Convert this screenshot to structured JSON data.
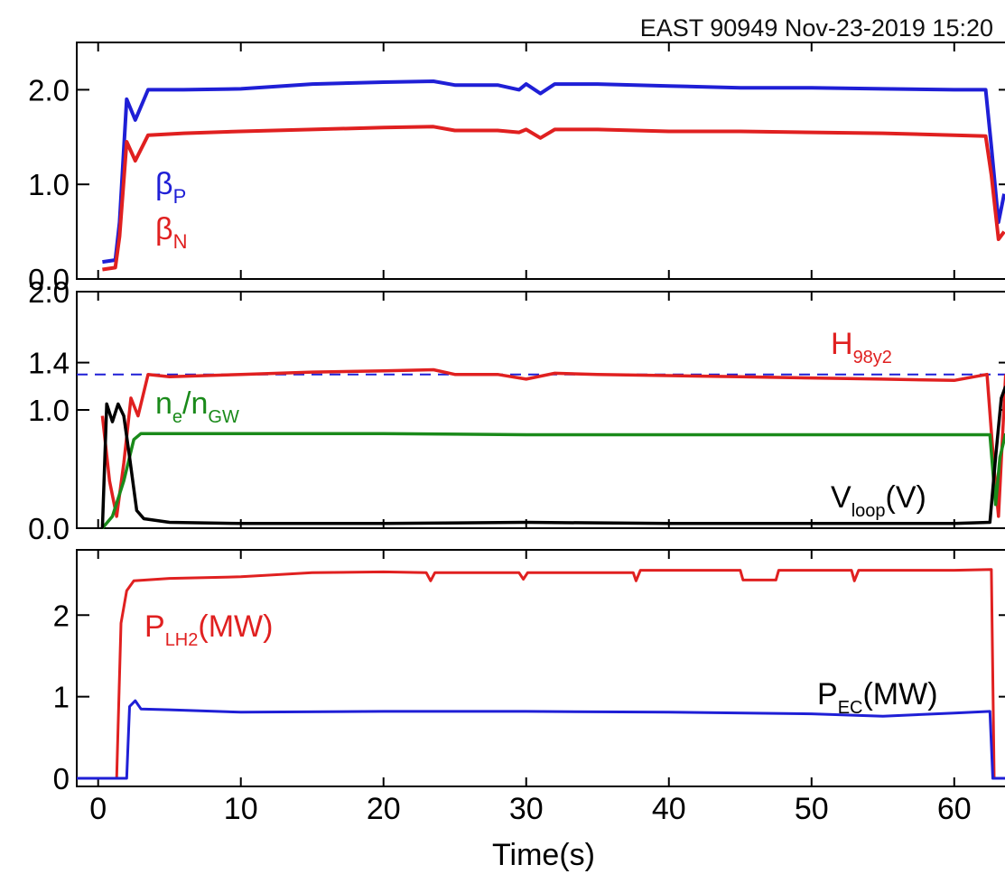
{
  "header": {
    "text": "EAST 90949 Nov-23-2019 15:20"
  },
  "chart_data": [
    {
      "type": "line",
      "panel": "top",
      "ylim": [
        0,
        2.5
      ],
      "yticks": [
        "0.0",
        "1.0",
        "2.0"
      ],
      "series": [
        {
          "name": "βP",
          "color": "#1f1fd6",
          "points": [
            [
              0.3,
              0.18
            ],
            [
              1.2,
              0.2
            ],
            [
              1.5,
              0.6
            ],
            [
              2.0,
              1.9
            ],
            [
              2.6,
              1.68
            ],
            [
              3.5,
              2.0
            ],
            [
              6,
              2.0
            ],
            [
              10,
              2.01
            ],
            [
              15,
              2.06
            ],
            [
              20,
              2.08
            ],
            [
              23.5,
              2.09
            ],
            [
              25,
              2.05
            ],
            [
              28,
              2.05
            ],
            [
              29.5,
              2.0
            ],
            [
              30,
              2.06
            ],
            [
              31,
              1.96
            ],
            [
              32,
              2.06
            ],
            [
              35,
              2.06
            ],
            [
              40,
              2.04
            ],
            [
              45,
              2.02
            ],
            [
              50,
              2.02
            ],
            [
              55,
              2.01
            ],
            [
              60,
              2.0
            ],
            [
              62.2,
              2.0
            ],
            [
              62.6,
              1.4
            ],
            [
              63.1,
              0.6
            ],
            [
              63.5,
              0.9
            ]
          ]
        },
        {
          "name": "βN",
          "color": "#e02020",
          "points": [
            [
              0.3,
              0.1
            ],
            [
              1.2,
              0.12
            ],
            [
              1.5,
              0.45
            ],
            [
              2.0,
              1.45
            ],
            [
              2.6,
              1.25
            ],
            [
              3.5,
              1.52
            ],
            [
              6,
              1.54
            ],
            [
              10,
              1.56
            ],
            [
              15,
              1.58
            ],
            [
              20,
              1.6
            ],
            [
              23.5,
              1.61
            ],
            [
              25,
              1.57
            ],
            [
              28,
              1.57
            ],
            [
              29.5,
              1.55
            ],
            [
              30,
              1.58
            ],
            [
              31,
              1.49
            ],
            [
              32,
              1.58
            ],
            [
              35,
              1.58
            ],
            [
              40,
              1.56
            ],
            [
              45,
              1.56
            ],
            [
              50,
              1.55
            ],
            [
              55,
              1.54
            ],
            [
              60,
              1.52
            ],
            [
              62.2,
              1.51
            ],
            [
              62.6,
              1.1
            ],
            [
              63.1,
              0.42
            ],
            [
              63.5,
              0.5
            ]
          ]
        }
      ]
    },
    {
      "type": "line",
      "panel": "middle",
      "ylim": [
        0,
        2.0
      ],
      "yticks": [
        "0.0",
        "1.0",
        "1.4",
        "2.0"
      ],
      "reference_line": {
        "y": 1.3,
        "style": "dashed",
        "color": "#1f1fd6"
      },
      "series": [
        {
          "name": "H98y2",
          "color": "#e02020",
          "points": [
            [
              0.3,
              0.95
            ],
            [
              0.8,
              0.4
            ],
            [
              1.3,
              0.1
            ],
            [
              1.8,
              0.55
            ],
            [
              2.3,
              1.1
            ],
            [
              2.8,
              0.95
            ],
            [
              3.5,
              1.3
            ],
            [
              5,
              1.28
            ],
            [
              10,
              1.3
            ],
            [
              15,
              1.32
            ],
            [
              20,
              1.33
            ],
            [
              23.5,
              1.34
            ],
            [
              25,
              1.3
            ],
            [
              28,
              1.3
            ],
            [
              30,
              1.26
            ],
            [
              32,
              1.31
            ],
            [
              35,
              1.3
            ],
            [
              40,
              1.29
            ],
            [
              45,
              1.28
            ],
            [
              50,
              1.27
            ],
            [
              55,
              1.26
            ],
            [
              60,
              1.25
            ],
            [
              62.3,
              1.3
            ],
            [
              62.8,
              0.5
            ],
            [
              63.1,
              0.1
            ],
            [
              63.6,
              1.3
            ]
          ]
        },
        {
          "name": "ne/nGW",
          "color": "#1a8a1a",
          "points": [
            [
              0.3,
              0.0
            ],
            [
              1.0,
              0.1
            ],
            [
              1.8,
              0.4
            ],
            [
              2.5,
              0.75
            ],
            [
              3.0,
              0.8
            ],
            [
              10,
              0.8
            ],
            [
              20,
              0.8
            ],
            [
              30,
              0.79
            ],
            [
              40,
              0.79
            ],
            [
              50,
              0.79
            ],
            [
              60,
              0.79
            ],
            [
              62.5,
              0.79
            ],
            [
              62.9,
              0.2
            ],
            [
              63.2,
              0.6
            ],
            [
              63.6,
              0.8
            ]
          ]
        },
        {
          "name": "Vloop(V)",
          "color": "#000000",
          "points": [
            [
              0.3,
              0.0
            ],
            [
              0.6,
              1.05
            ],
            [
              1.0,
              0.9
            ],
            [
              1.4,
              1.05
            ],
            [
              1.8,
              0.95
            ],
            [
              2.2,
              0.6
            ],
            [
              2.7,
              0.15
            ],
            [
              3.2,
              0.08
            ],
            [
              5,
              0.05
            ],
            [
              10,
              0.04
            ],
            [
              20,
              0.04
            ],
            [
              30,
              0.05
            ],
            [
              40,
              0.04
            ],
            [
              50,
              0.04
            ],
            [
              60,
              0.04
            ],
            [
              62.5,
              0.05
            ],
            [
              62.9,
              0.6
            ],
            [
              63.3,
              1.1
            ],
            [
              63.6,
              1.2
            ]
          ]
        }
      ]
    },
    {
      "type": "line",
      "panel": "bottom",
      "ylim": [
        -0.1,
        2.8
      ],
      "yticks": [
        "0",
        "1",
        "2"
      ],
      "xlim": [
        -1.5,
        64
      ],
      "xticks": [
        "0",
        "10",
        "20",
        "30",
        "40",
        "50",
        "60"
      ],
      "xlabel": "Time(s)",
      "series": [
        {
          "name": "PLH2(MW)",
          "color": "#e02020",
          "points": [
            [
              -1.5,
              0.0
            ],
            [
              1.3,
              0.0
            ],
            [
              1.6,
              1.9
            ],
            [
              2.0,
              2.3
            ],
            [
              2.5,
              2.42
            ],
            [
              5,
              2.45
            ],
            [
              10,
              2.47
            ],
            [
              15,
              2.52
            ],
            [
              20,
              2.53
            ],
            [
              23,
              2.52
            ],
            [
              23.3,
              2.42
            ],
            [
              23.6,
              2.52
            ],
            [
              29.5,
              2.52
            ],
            [
              29.8,
              2.44
            ],
            [
              30.1,
              2.52
            ],
            [
              37.5,
              2.52
            ],
            [
              37.7,
              2.42
            ],
            [
              38,
              2.55
            ],
            [
              45,
              2.55
            ],
            [
              45.2,
              2.43
            ],
            [
              47.5,
              2.43
            ],
            [
              47.7,
              2.55
            ],
            [
              52.8,
              2.55
            ],
            [
              53,
              2.42
            ],
            [
              53.3,
              2.55
            ],
            [
              60,
              2.55
            ],
            [
              62.6,
              2.56
            ],
            [
              62.8,
              0.0
            ],
            [
              64,
              0.0
            ]
          ]
        },
        {
          "name": "PEC(MW)",
          "color": "#1f1fd6",
          "points": [
            [
              -1.5,
              0.0
            ],
            [
              2.0,
              0.0
            ],
            [
              2.2,
              0.88
            ],
            [
              2.6,
              0.95
            ],
            [
              3.0,
              0.85
            ],
            [
              5,
              0.84
            ],
            [
              10,
              0.81
            ],
            [
              20,
              0.82
            ],
            [
              30,
              0.82
            ],
            [
              40,
              0.81
            ],
            [
              50,
              0.79
            ],
            [
              55,
              0.76
            ],
            [
              60,
              0.8
            ],
            [
              62.5,
              0.82
            ],
            [
              62.7,
              0.0
            ],
            [
              64,
              0.0
            ]
          ]
        }
      ]
    }
  ]
}
